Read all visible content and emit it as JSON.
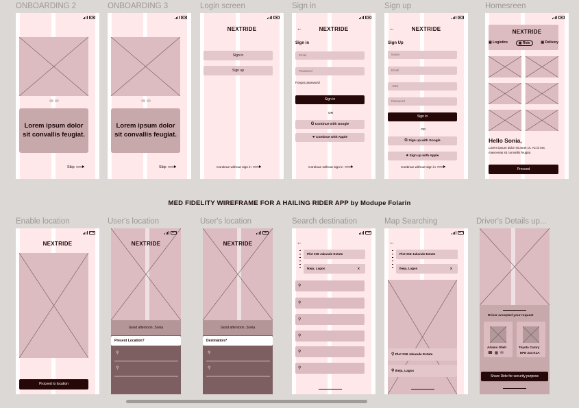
{
  "canvas": {
    "heading": "MED FIDELITY WIREFRAME FOR A HAILING RIDER APP by Modupe Folarin"
  },
  "frames_row1": [
    {
      "label": "ONBOARDING 2",
      "card_text": "Lorem ipsum dolor  sit convallis feugiat.",
      "skip": "Skip"
    },
    {
      "label": "ONBOARDING 3",
      "card_text": "Lorem ipsum dolor  sit convallis feugiat.",
      "skip": "Skip"
    },
    {
      "label": "Login screen",
      "brand": "NEXTRIDE",
      "sign_in": "Sign in",
      "sign_up": "Sign up",
      "continue": "Continue without sign in"
    },
    {
      "label": "Sign in",
      "brand": "NEXTRIDE",
      "title": "Sign in",
      "email": "Email",
      "password": "Password",
      "forgot": "Forgot password",
      "submit": "Sign in",
      "or": "OR",
      "google": "Continue with Google",
      "apple": "Continue with Apple",
      "continue": "Continue without sign in"
    },
    {
      "label": "Sign up",
      "brand": "NEXTRIDE",
      "title": "Sign Up",
      "name": "Name",
      "email": "Email",
      "phone": "+234",
      "password": "Password",
      "submit": "Sign in",
      "or": "OR",
      "google": "Sign up with Google",
      "apple": "Sign up with Apple",
      "continue": "Continue without sign in"
    },
    {
      "label": "Homesreen",
      "brand": "NEXTRIDE",
      "tabs": [
        "Logistics",
        "Ride",
        "Delivery"
      ],
      "greeting": "Hello Sonia,",
      "body": "Lorem ipsum dolor sit amet cs. Ac id nec maecenas sit convallis feugiat.",
      "proceed": "Proceed"
    }
  ],
  "frames_row2": [
    {
      "label": "Enable location",
      "brand": "NEXTRIDE",
      "button": "Proceed to location"
    },
    {
      "label": "User's location",
      "brand": "NEXTRIDE",
      "greeting": "Good afternoon, Sonia",
      "prompt": "Present Location?"
    },
    {
      "label": "User's location",
      "brand": "NEXTRIDE",
      "greeting": "Good afternoon, Sonia",
      "prompt": "Destination?"
    },
    {
      "label": "Search destination",
      "from": "Plot 218 Jakande Estate",
      "to": "Ikeja, Lagos",
      "clear": "X"
    },
    {
      "label": "Map Searching",
      "from": "Plot 218 Jakande Estate",
      "to": "Ikeja, Lagos",
      "clear": "X",
      "result1": "Plot 218 Jakande Estate",
      "result2": "Ikeja, Lagos"
    },
    {
      "label": "Driver's Details up...",
      "accepted": "Driver accepted your request",
      "driver_name": "Adams Olieh",
      "car": "Toyota Camry",
      "plate": "EPE 234 KJA",
      "share": "Share Ride for security purpose"
    }
  ],
  "icons": {
    "google": "google-icon",
    "apple": "apple-icon",
    "back": "back-arrow-icon",
    "pin": "location-pin-icon",
    "phone": "phone-icon",
    "message": "message-icon",
    "mail": "mail-icon"
  },
  "colors": {
    "frame_bg": "#ffe8ea",
    "placeholder": "#dcbcc0",
    "primary_dark": "#260808",
    "sheet": "#7e5f61"
  }
}
